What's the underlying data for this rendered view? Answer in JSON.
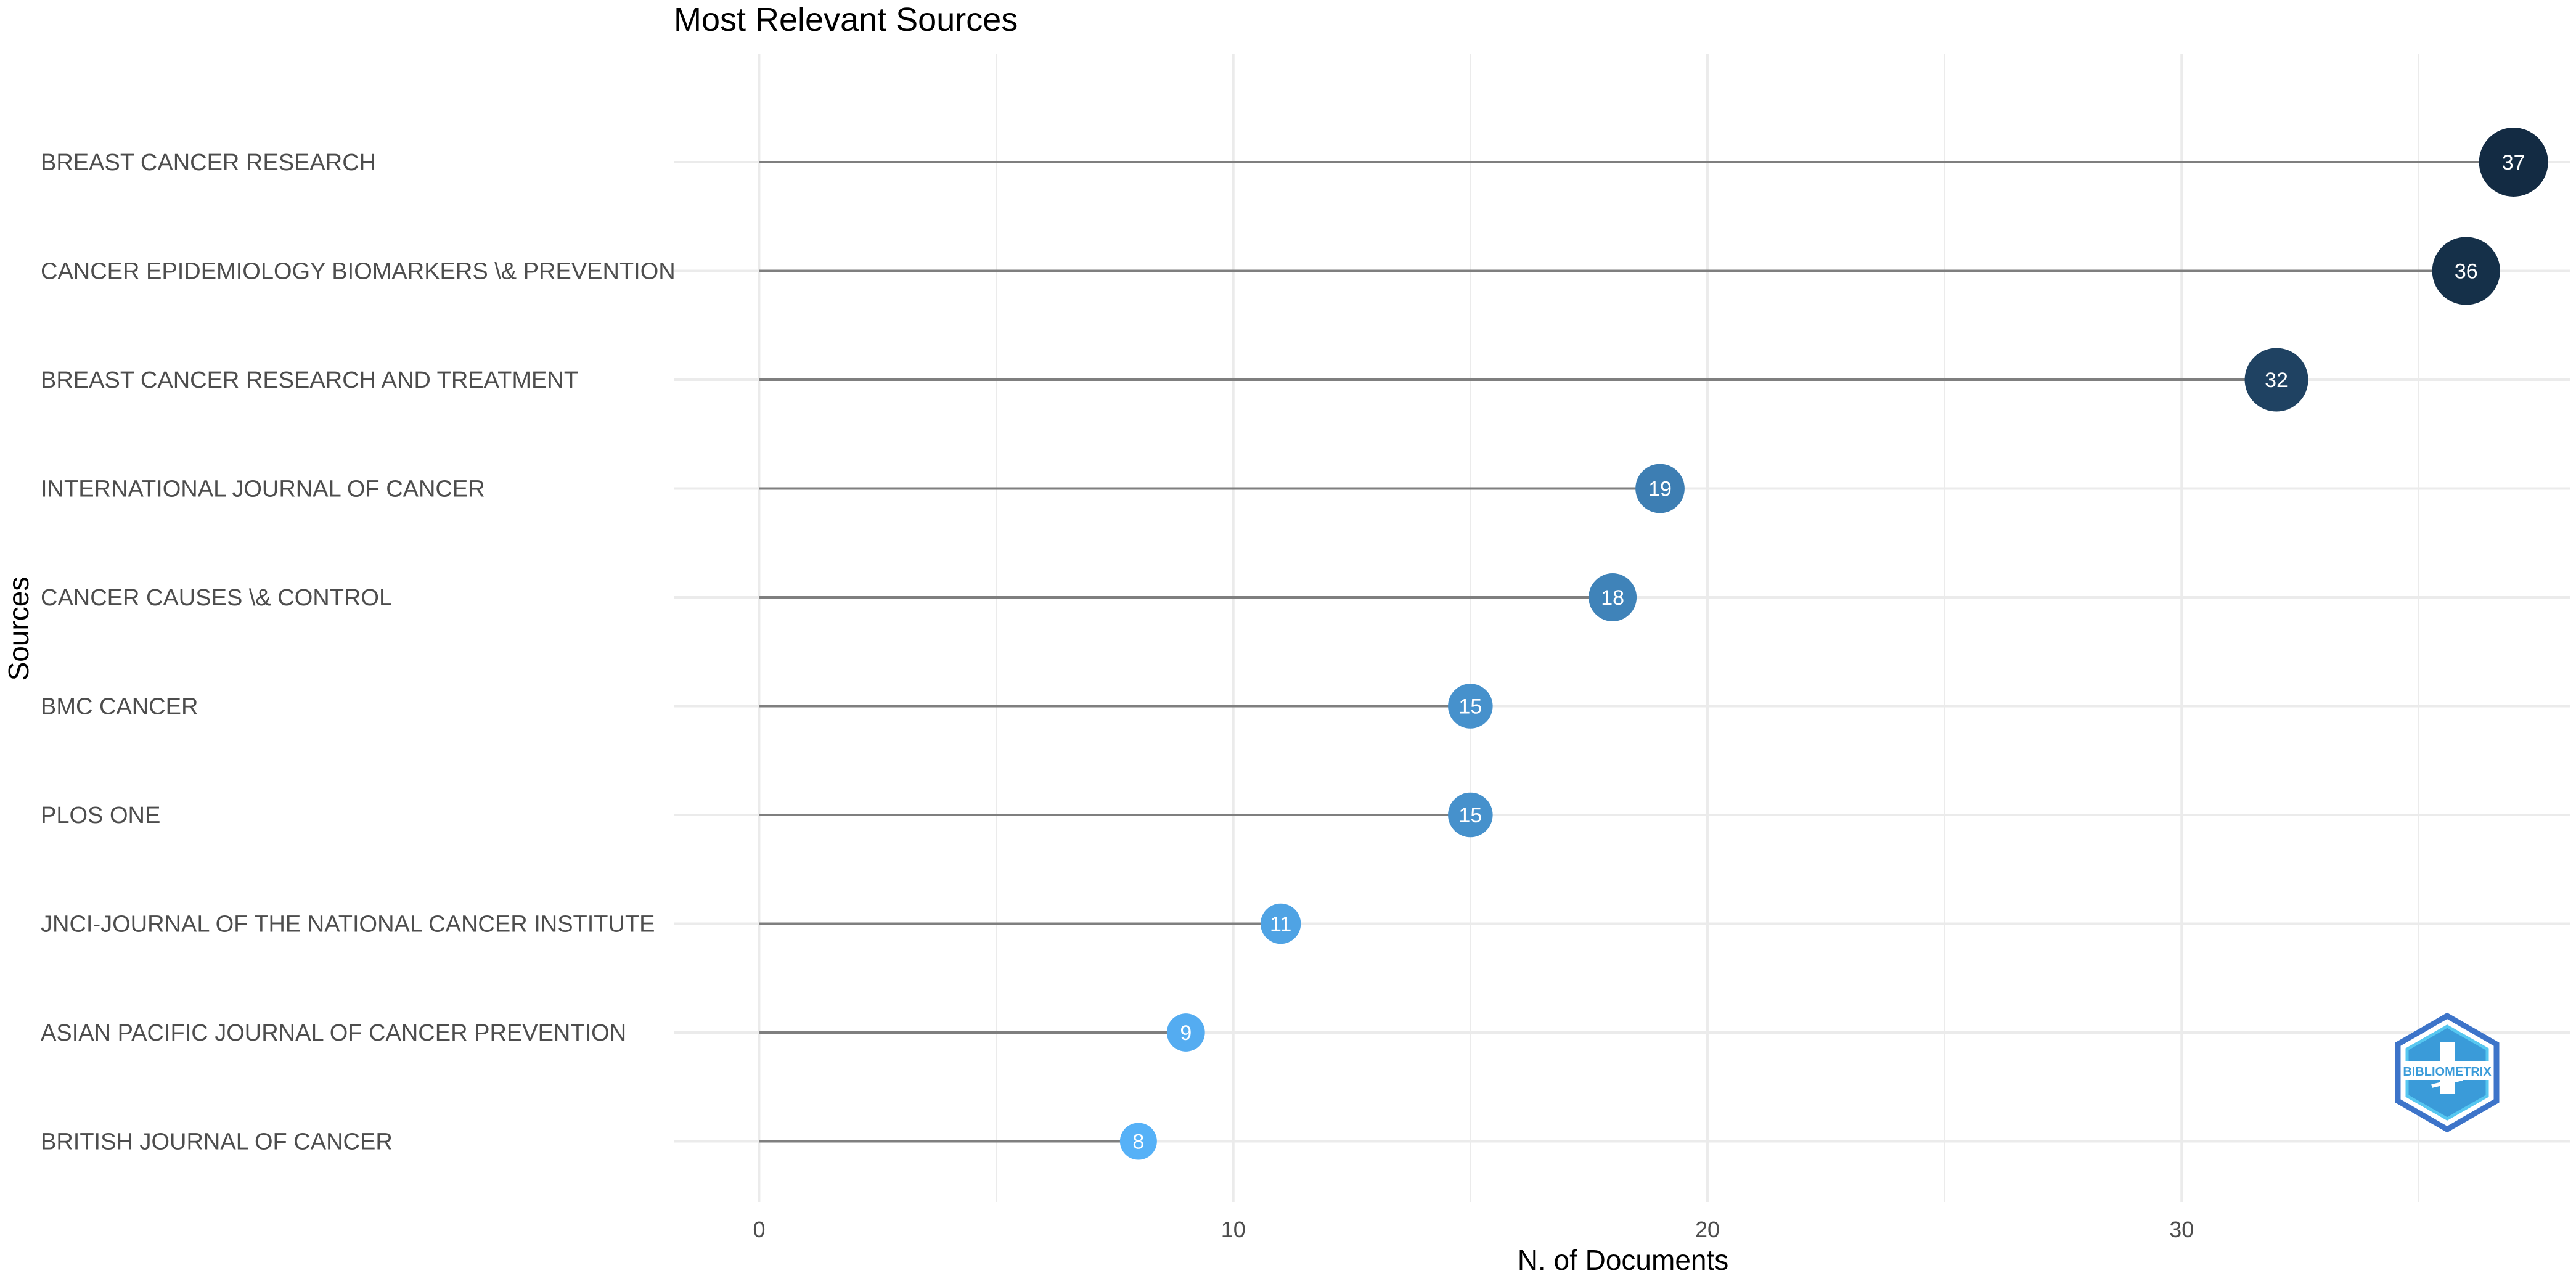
{
  "chart_data": {
    "type": "scatter",
    "subtype": "lollipop",
    "title": "Most Relevant Sources",
    "xlabel": "N. of Documents",
    "ylabel": "Sources",
    "xlim": [
      -1.8,
      38.2
    ],
    "xticks": [
      0,
      10,
      20,
      30
    ],
    "grid": true,
    "legend": "none",
    "categories": [
      "BREAST CANCER RESEARCH",
      "CANCER EPIDEMIOLOGY BIOMARKERS \\& PREVENTION",
      "BREAST CANCER RESEARCH AND TREATMENT",
      "INTERNATIONAL JOURNAL OF CANCER",
      "CANCER CAUSES \\& CONTROL",
      "BMC CANCER",
      "PLOS ONE",
      "JNCI-JOURNAL OF THE NATIONAL CANCER INSTITUTE",
      "ASIAN PACIFIC JOURNAL OF CANCER PREVENTION",
      "BRITISH JOURNAL OF CANCER"
    ],
    "values": [
      37,
      36,
      32,
      19,
      18,
      15,
      15,
      11,
      9,
      8
    ],
    "colors": {
      "low": "#56b1f7",
      "high": "#132b43",
      "stem": "#7f7f7f",
      "grid": "#ebebeb"
    }
  },
  "logo": {
    "text": "BIBLIOMETRIX",
    "color": "#3a9bd9"
  }
}
